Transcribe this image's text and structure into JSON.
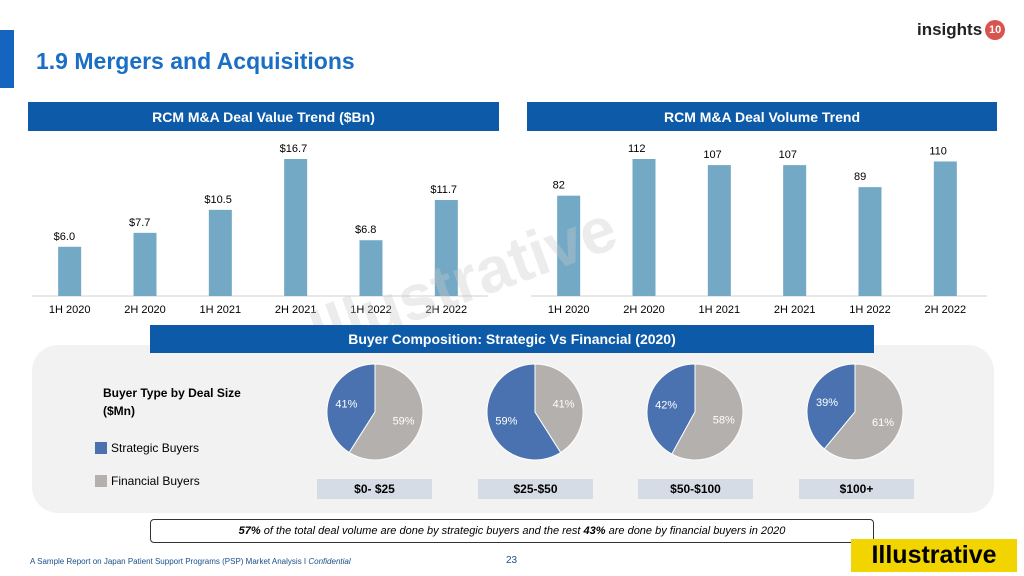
{
  "page": {
    "title": "1.9 Mergers and Acquisitions",
    "logo_text": "insights",
    "logo_badge": "10",
    "watermark": "Illustrative",
    "footer": "A Sample Report on Japan Patient Support Programs (PSP) Market Analysis I",
    "footer_conf": "Confidential",
    "page_number": "23",
    "stamp": "Illustrative",
    "note_pre": "",
    "note_a": "57%",
    "note_mid": " of the total deal volume are done by strategic buyers and the rest ",
    "note_b": "43%",
    "note_post": " are done by financial buyers in 2020"
  },
  "banners": {
    "value": "RCM M&A Deal Value Trend ($Bn)",
    "volume": "RCM M&A Deal Volume Trend",
    "buyer": "Buyer Composition: Strategic Vs Financial (2020)"
  },
  "legend": {
    "title": "Buyer Type by Deal Size ($Mn)",
    "strategic": "Strategic Buyers",
    "financial": "Financial Buyers"
  },
  "colors": {
    "bar": "#74a9c6",
    "strategic": "#4a72b0",
    "financial": "#b3b0ae"
  },
  "chart_data": [
    {
      "type": "bar",
      "title": "RCM M&A Deal Value Trend ($Bn)",
      "categories": [
        "1H 2020",
        "2H 2020",
        "1H 2021",
        "2H 2021",
        "1H 2022",
        "2H 2022"
      ],
      "values": [
        6.0,
        7.7,
        10.5,
        16.7,
        6.8,
        11.7
      ],
      "labels": [
        "$6.0",
        "$7.7",
        "$10.5",
        "$16.7",
        "$6.8",
        "$11.7"
      ],
      "ylim": [
        0,
        16.7
      ]
    },
    {
      "type": "bar",
      "title": "RCM M&A Deal Volume Trend",
      "categories": [
        "1H 2020",
        "2H 2020",
        "1H 2021",
        "2H 2021",
        "1H 2022",
        "2H 2022"
      ],
      "values": [
        82,
        112,
        107,
        107,
        89,
        110
      ],
      "labels": [
        "82",
        "112",
        "107",
        "107",
        "89",
        "110"
      ],
      "ylim": [
        0,
        112
      ]
    },
    {
      "type": "pie",
      "title": "Buyer Composition: Strategic Vs Financial (2020)",
      "pies": [
        {
          "range": "$0- $25",
          "strategic": 41,
          "financial": 59,
          "s_label": "41%",
          "f_label": "59%"
        },
        {
          "range": "$25-$50",
          "strategic": 59,
          "financial": 41,
          "s_label": "59%",
          "f_label": "41%"
        },
        {
          "range": "$50-$100",
          "strategic": 42,
          "financial": 58,
          "s_label": "42%",
          "f_label": "58%"
        },
        {
          "range": "$100+",
          "strategic": 39,
          "financial": 61,
          "s_label": "39%",
          "f_label": "61%"
        }
      ]
    }
  ]
}
